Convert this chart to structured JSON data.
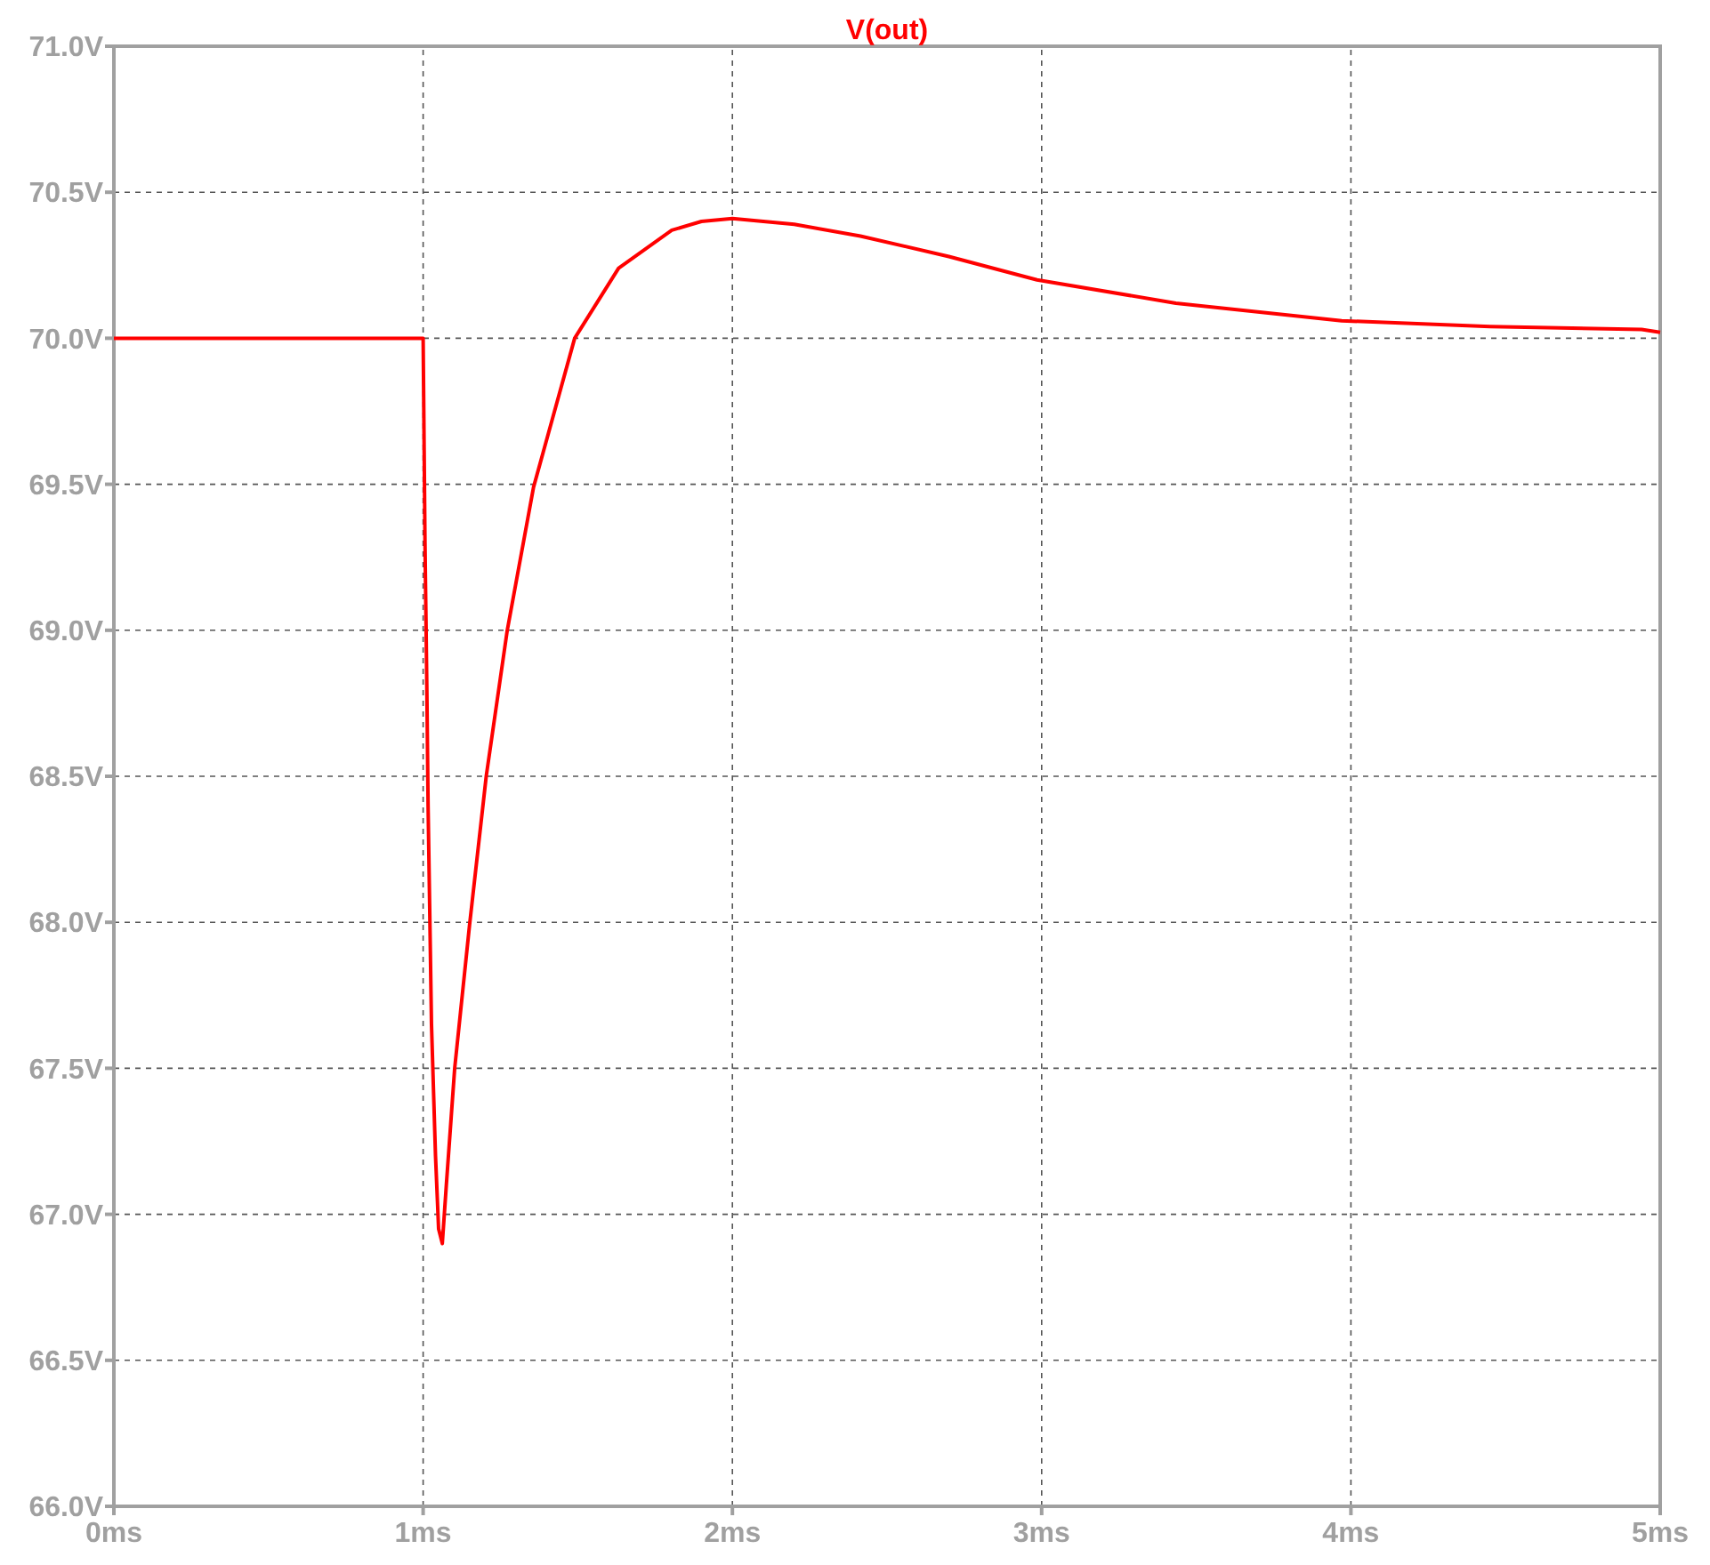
{
  "chart_data": {
    "type": "line",
    "title": "V(out)",
    "grid": true,
    "marker": "none",
    "line_style": "solid",
    "xlim": [
      0,
      5
    ],
    "ylim": [
      66,
      71
    ],
    "xticks": [
      {
        "value": 0,
        "label": "0ms"
      },
      {
        "value": 1,
        "label": "1ms"
      },
      {
        "value": 2,
        "label": "2ms"
      },
      {
        "value": 3,
        "label": "3ms"
      },
      {
        "value": 4,
        "label": "4ms"
      },
      {
        "value": 5,
        "label": "5ms"
      }
    ],
    "yticks": [
      {
        "value": 66,
        "label": "66.0V"
      },
      {
        "value": 66.5,
        "label": "66.5V"
      },
      {
        "value": 67,
        "label": "67.0V"
      },
      {
        "value": 67.5,
        "label": "67.5V"
      },
      {
        "value": 68,
        "label": "68.0V"
      },
      {
        "value": 68.5,
        "label": "68.5V"
      },
      {
        "value": 69,
        "label": "69.0V"
      },
      {
        "value": 69.5,
        "label": "69.5V"
      },
      {
        "value": 70,
        "label": "70.0V"
      },
      {
        "value": 70.5,
        "label": "70.5V"
      },
      {
        "value": 71,
        "label": "71.0V"
      }
    ],
    "series": [
      {
        "color": "#ff0000",
        "x": [
          0,
          0.5,
          0.99,
          1.0,
          1.006,
          1.012,
          1.016,
          1.027,
          1.04,
          1.05,
          1.062,
          1.075,
          1.102,
          1.15,
          1.204,
          1.272,
          1.357,
          1.49,
          1.632,
          1.804,
          1.9,
          2.0,
          2.2,
          2.414,
          2.7,
          2.985,
          3.434,
          3.97,
          4.45,
          4.94,
          5.0
        ],
        "values": [
          70.0,
          70.0,
          70.0,
          70.0,
          69.3,
          68.8,
          68.4,
          67.65,
          67.2,
          66.95,
          66.9,
          67.1,
          67.5,
          67.99,
          68.5,
          69.0,
          69.49,
          70.0,
          70.24,
          70.37,
          70.4,
          70.41,
          70.39,
          70.35,
          70.28,
          70.2,
          70.12,
          70.06,
          70.04,
          70.03,
          70.02
        ]
      }
    ]
  }
}
